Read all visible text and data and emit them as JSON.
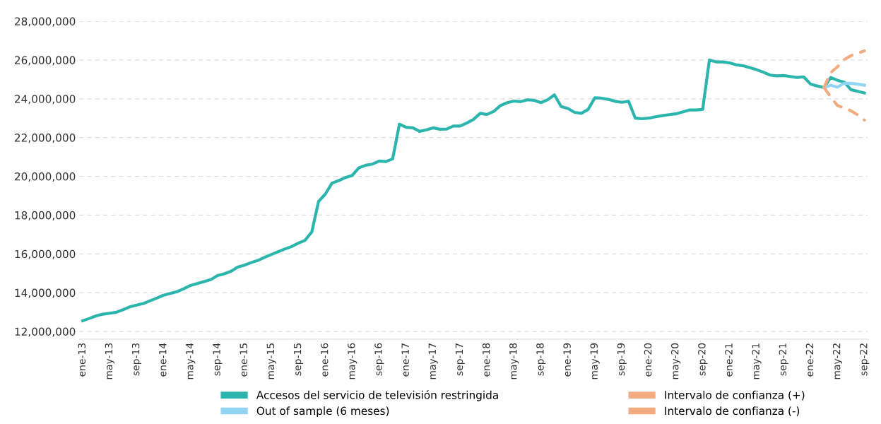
{
  "chart_data": {
    "type": "line",
    "categories": [
      "ene-13",
      null,
      null,
      null,
      "may-13",
      null,
      null,
      null,
      "sep-13",
      null,
      null,
      null,
      "ene-14",
      null,
      null,
      null,
      "may-14",
      null,
      null,
      null,
      "sep-14",
      null,
      null,
      null,
      "ene-15",
      null,
      null,
      null,
      "may-15",
      null,
      null,
      null,
      "sep-15",
      null,
      null,
      null,
      "ene-16",
      null,
      null,
      null,
      "may-16",
      null,
      null,
      null,
      "sep-16",
      null,
      null,
      null,
      "ene-17",
      null,
      null,
      null,
      "may-17",
      null,
      null,
      null,
      "sep-17",
      null,
      null,
      null,
      "ene-18",
      null,
      null,
      null,
      "may-18",
      null,
      null,
      null,
      "sep-18",
      null,
      null,
      null,
      "ene-19",
      null,
      null,
      null,
      "may-19",
      null,
      null,
      null,
      "sep-19",
      null,
      null,
      null,
      "ene-20",
      null,
      null,
      null,
      "may-20",
      null,
      null,
      null,
      "sep-20",
      null,
      null,
      null,
      "ene-21",
      null,
      null,
      null,
      "may-21",
      null,
      null,
      null,
      "sep-21",
      null,
      null,
      null,
      "ene-22",
      null,
      null,
      null,
      "may-22",
      null,
      null,
      null,
      "sep-22"
    ],
    "series": [
      {
        "name": "Accesos del servicio de televisión restringida",
        "color": "#2bb5ad",
        "line_style": "solid",
        "values": [
          12550000,
          12670000,
          12800000,
          12890000,
          12940000,
          12990000,
          13120000,
          13270000,
          13360000,
          13440000,
          13580000,
          13720000,
          13870000,
          13960000,
          14050000,
          14200000,
          14370000,
          14470000,
          14570000,
          14670000,
          14880000,
          14970000,
          15100000,
          15320000,
          15420000,
          15550000,
          15660000,
          15820000,
          15970000,
          16110000,
          16250000,
          16380000,
          16550000,
          16700000,
          17130000,
          18700000,
          19080000,
          19650000,
          19780000,
          19940000,
          20050000,
          20440000,
          20570000,
          20630000,
          20790000,
          20760000,
          20900000,
          22690000,
          22530000,
          22500000,
          22320000,
          22400000,
          22500000,
          22430000,
          22440000,
          22590000,
          22590000,
          22750000,
          22940000,
          23250000,
          23190000,
          23350000,
          23650000,
          23800000,
          23880000,
          23850000,
          23950000,
          23920000,
          23800000,
          23950000,
          24200000,
          23600000,
          23500000,
          23300000,
          23250000,
          23450000,
          24050000,
          24030000,
          23970000,
          23870000,
          23820000,
          23870000,
          23000000,
          22970000,
          23000000,
          23070000,
          23130000,
          23180000,
          23220000,
          23320000,
          23420000,
          23420000,
          23450000,
          26000000,
          25900000,
          25900000,
          25850000,
          25750000,
          25700000,
          25600000,
          25500000,
          25370000,
          25220000,
          25180000,
          25200000,
          25150000,
          25100000,
          25130000,
          24760000,
          24660000,
          24580000,
          25100000,
          24950000,
          24860000,
          24470000,
          24380000,
          24300000
        ]
      },
      {
        "name": "Out of sample (6 meses)",
        "color": "#93d4f2",
        "line_style": "solid",
        "values": [
          null,
          null,
          null,
          null,
          null,
          null,
          null,
          null,
          null,
          null,
          null,
          null,
          null,
          null,
          null,
          null,
          null,
          null,
          null,
          null,
          null,
          null,
          null,
          null,
          null,
          null,
          null,
          null,
          null,
          null,
          null,
          null,
          null,
          null,
          null,
          null,
          null,
          null,
          null,
          null,
          null,
          null,
          null,
          null,
          null,
          null,
          null,
          null,
          null,
          null,
          null,
          null,
          null,
          null,
          null,
          null,
          null,
          null,
          null,
          null,
          null,
          null,
          null,
          null,
          null,
          null,
          null,
          null,
          null,
          null,
          null,
          null,
          null,
          null,
          null,
          null,
          null,
          null,
          null,
          null,
          null,
          null,
          null,
          null,
          null,
          null,
          null,
          null,
          null,
          null,
          null,
          null,
          null,
          null,
          null,
          null,
          null,
          null,
          null,
          null,
          null,
          null,
          null,
          null,
          null,
          null,
          null,
          null,
          null,
          null,
          24580000,
          24690000,
          24600000,
          24800000,
          24800000,
          24750000,
          24700000
        ]
      },
      {
        "name": "Intervalo de confianza (+)",
        "color": "#f4ab80",
        "line_style": "dashed",
        "values": [
          null,
          null,
          null,
          null,
          null,
          null,
          null,
          null,
          null,
          null,
          null,
          null,
          null,
          null,
          null,
          null,
          null,
          null,
          null,
          null,
          null,
          null,
          null,
          null,
          null,
          null,
          null,
          null,
          null,
          null,
          null,
          null,
          null,
          null,
          null,
          null,
          null,
          null,
          null,
          null,
          null,
          null,
          null,
          null,
          null,
          null,
          null,
          null,
          null,
          null,
          null,
          null,
          null,
          null,
          null,
          null,
          null,
          null,
          null,
          null,
          null,
          null,
          null,
          null,
          null,
          null,
          null,
          null,
          null,
          null,
          null,
          null,
          null,
          null,
          null,
          null,
          null,
          null,
          null,
          null,
          null,
          null,
          null,
          null,
          null,
          null,
          null,
          null,
          null,
          null,
          null,
          null,
          null,
          null,
          null,
          null,
          null,
          null,
          null,
          null,
          null,
          null,
          null,
          null,
          null,
          null,
          null,
          null,
          null,
          null,
          24580000,
          25350000,
          25650000,
          26020000,
          26220000,
          26350000,
          26470000
        ]
      },
      {
        "name": "Intervalo de confianza (-)",
        "color": "#f4ab80",
        "line_style": "dashed",
        "values": [
          null,
          null,
          null,
          null,
          null,
          null,
          null,
          null,
          null,
          null,
          null,
          null,
          null,
          null,
          null,
          null,
          null,
          null,
          null,
          null,
          null,
          null,
          null,
          null,
          null,
          null,
          null,
          null,
          null,
          null,
          null,
          null,
          null,
          null,
          null,
          null,
          null,
          null,
          null,
          null,
          null,
          null,
          null,
          null,
          null,
          null,
          null,
          null,
          null,
          null,
          null,
          null,
          null,
          null,
          null,
          null,
          null,
          null,
          null,
          null,
          null,
          null,
          null,
          null,
          null,
          null,
          null,
          null,
          null,
          null,
          null,
          null,
          null,
          null,
          null,
          null,
          null,
          null,
          null,
          null,
          null,
          null,
          null,
          null,
          null,
          null,
          null,
          null,
          null,
          null,
          null,
          null,
          null,
          null,
          null,
          null,
          null,
          null,
          null,
          null,
          null,
          null,
          null,
          null,
          null,
          null,
          null,
          null,
          null,
          null,
          24580000,
          24100000,
          23650000,
          23530000,
          23380000,
          23170000,
          22900000
        ]
      }
    ],
    "ylim": [
      11600000,
      28000000
    ],
    "yticks": [
      {
        "value": 12000000,
        "label": "12,000,000"
      },
      {
        "value": 14000000,
        "label": "14,000,000"
      },
      {
        "value": 16000000,
        "label": "16,000,000"
      },
      {
        "value": 18000000,
        "label": "18,000,000"
      },
      {
        "value": 20000000,
        "label": "20,000,000"
      },
      {
        "value": 22000000,
        "label": "22,000,000"
      },
      {
        "value": 24000000,
        "label": "24,000,000"
      },
      {
        "value": 26000000,
        "label": "26,000,000"
      },
      {
        "value": 28000000,
        "label": "28,000,000"
      }
    ],
    "grid": "y",
    "legend": "bottom",
    "marker": "none"
  }
}
